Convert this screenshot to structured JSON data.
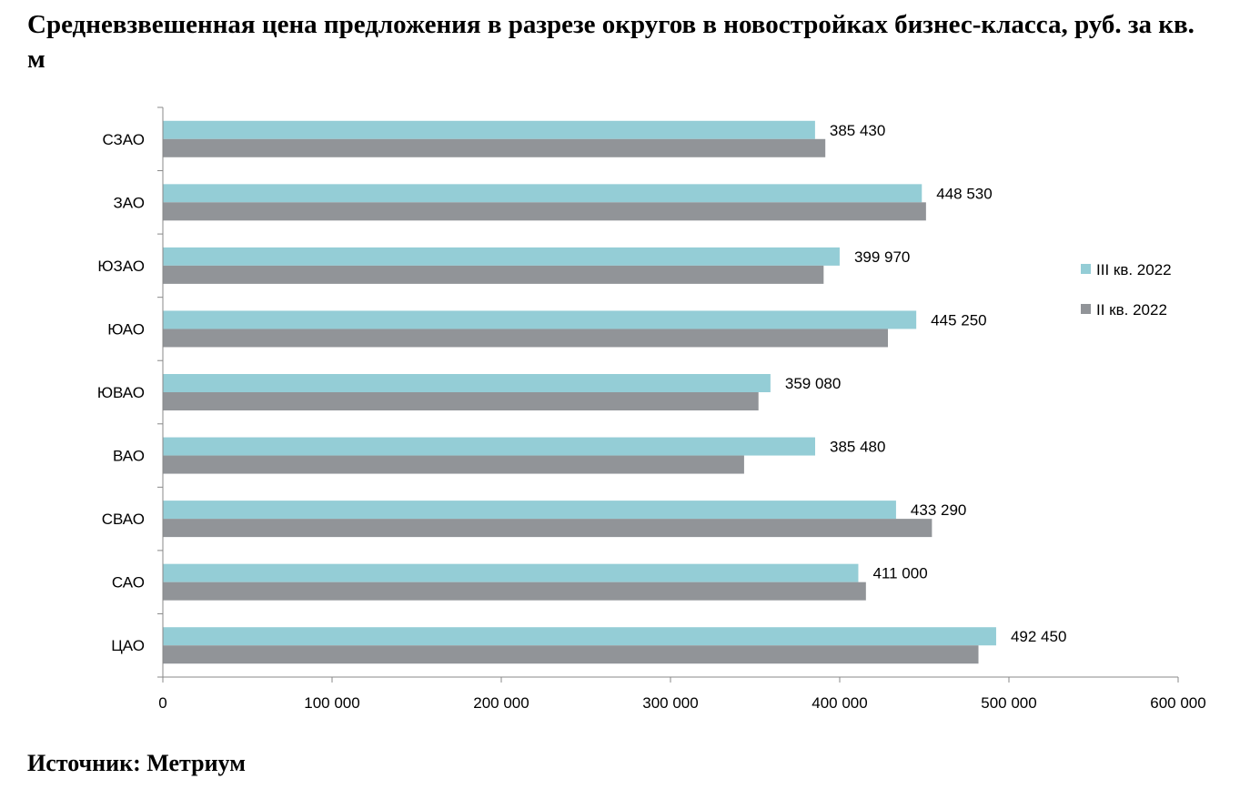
{
  "title": "Средневзвешенная цена предложения в разрезе округов в новостройках бизнес-класса, руб. за кв. м",
  "source": "Источник: Метриум",
  "chart_data": {
    "type": "bar",
    "orientation": "horizontal",
    "categories": [
      "СЗАО",
      "ЗАО",
      "ЮЗАО",
      "ЮАО",
      "ЮВАО",
      "ВАО",
      "СВАО",
      "САО",
      "ЦАО"
    ],
    "series": [
      {
        "name": "III кв. 2022",
        "color": "#94CDD6",
        "values": [
          385430,
          448530,
          399970,
          445250,
          359080,
          385480,
          433290,
          411000,
          492450
        ],
        "labels": [
          "385 430",
          "448 530",
          "399 970",
          "445 250",
          "359 080",
          "385 480",
          "433 290",
          "411 000",
          "492 450"
        ]
      },
      {
        "name": "II кв. 2022",
        "color": "#919498",
        "values": [
          391500,
          451000,
          390500,
          428500,
          352000,
          343500,
          454500,
          415500,
          482000
        ]
      }
    ],
    "xlim": [
      0,
      600000
    ],
    "xticks": [
      0,
      100000,
      200000,
      300000,
      400000,
      500000,
      600000
    ],
    "xtick_labels": [
      "0",
      "100 000",
      "200 000",
      "300 000",
      "400 000",
      "500 000",
      "600 000"
    ],
    "grid": false,
    "legend_position": "right"
  }
}
